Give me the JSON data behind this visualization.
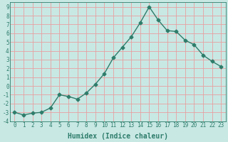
{
  "x": [
    0,
    1,
    2,
    3,
    4,
    5,
    6,
    7,
    8,
    9,
    10,
    11,
    12,
    13,
    14,
    15,
    16,
    17,
    18,
    19,
    20,
    21,
    22,
    23
  ],
  "y": [
    -3.0,
    -3.3,
    -3.1,
    -3.0,
    -2.5,
    -1.0,
    -1.2,
    -1.5,
    -0.8,
    0.2,
    1.4,
    3.2,
    4.4,
    5.6,
    7.2,
    9.0,
    7.5,
    6.3,
    6.2,
    5.2,
    4.7,
    3.5,
    2.8,
    2.2
  ],
  "xlabel": "Humidex (Indice chaleur)",
  "xlim": [
    -0.5,
    23.5
  ],
  "ylim": [
    -4,
    9.5
  ],
  "yticks": [
    -4,
    -3,
    -2,
    -1,
    0,
    1,
    2,
    3,
    4,
    5,
    6,
    7,
    8,
    9
  ],
  "xticks": [
    0,
    1,
    2,
    3,
    4,
    5,
    6,
    7,
    8,
    9,
    10,
    11,
    12,
    13,
    14,
    15,
    16,
    17,
    18,
    19,
    20,
    21,
    22,
    23
  ],
  "line_color": "#2E7D6B",
  "bg_color": "#C8E8E4",
  "grid_color": "#E8A0A0",
  "marker": "D",
  "marker_size": 2.5,
  "line_width": 1.0,
  "xlabel_fontsize": 7,
  "tick_fontsize": 5.5
}
